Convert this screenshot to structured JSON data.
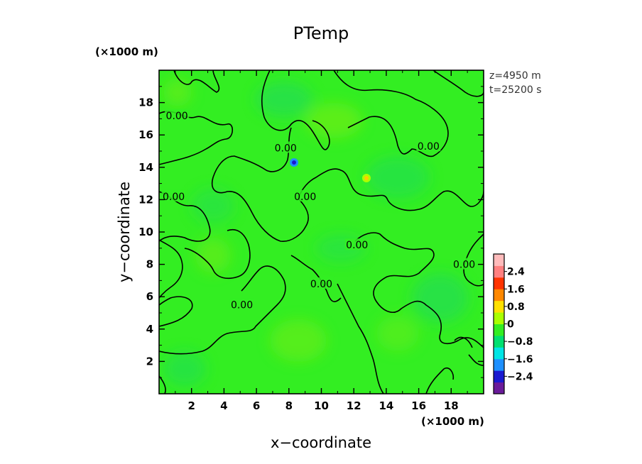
{
  "chart_data": {
    "type": "heatmap",
    "title": "PTemp",
    "xlabel": "x−coordinate",
    "ylabel": "y−coordinate",
    "x_unit": "(×1000 m)",
    "y_unit": "(×1000 m)",
    "xlim": [
      0,
      20
    ],
    "ylim": [
      0,
      20
    ],
    "xticks": [
      2,
      4,
      6,
      8,
      10,
      12,
      14,
      16,
      18
    ],
    "yticks": [
      2,
      4,
      6,
      8,
      10,
      12,
      14,
      16,
      18
    ],
    "info": [
      "z=4950  m",
      "t=25200  s"
    ],
    "colorbar": {
      "range": [
        -3.2,
        3.2
      ],
      "ticks": [
        2.4,
        1.6,
        0.8,
        0,
        -0.8,
        -1.6,
        -2.4
      ],
      "tick_labels": [
        "2.4",
        "1.6",
        "0.8",
        "0",
        "−0.8",
        "−1.6",
        "−2.4"
      ],
      "colors": [
        "#6a1b9a",
        "#1a1ad0",
        "#1e90ff",
        "#00e5e5",
        "#00e070",
        "#33ee22",
        "#aaff00",
        "#ffe000",
        "#ff8800",
        "#ff3300",
        "#ff8080",
        "#ffbbbb"
      ]
    },
    "contour_level": 0.0,
    "contour_labels": [
      {
        "text": "0.00",
        "x": 1.1,
        "y": 17.2
      },
      {
        "text": "0.00",
        "x": 7.8,
        "y": 15.2
      },
      {
        "text": "0.00",
        "x": 16.6,
        "y": 15.3
      },
      {
        "text": "0.00",
        "x": 0.9,
        "y": 12.2
      },
      {
        "text": "0.00",
        "x": 9.0,
        "y": 12.2
      },
      {
        "text": "0.00",
        "x": 12.2,
        "y": 9.2
      },
      {
        "text": "0.00",
        "x": 18.8,
        "y": 8.0
      },
      {
        "text": "0.00",
        "x": 10.0,
        "y": 6.8
      },
      {
        "text": "0.00",
        "x": 5.1,
        "y": 5.5
      }
    ],
    "anomalies": [
      {
        "x": 8.4,
        "y": 14.3,
        "value": -1.6
      },
      {
        "x": 12.9,
        "y": 13.3,
        "value": 1.2
      }
    ]
  }
}
